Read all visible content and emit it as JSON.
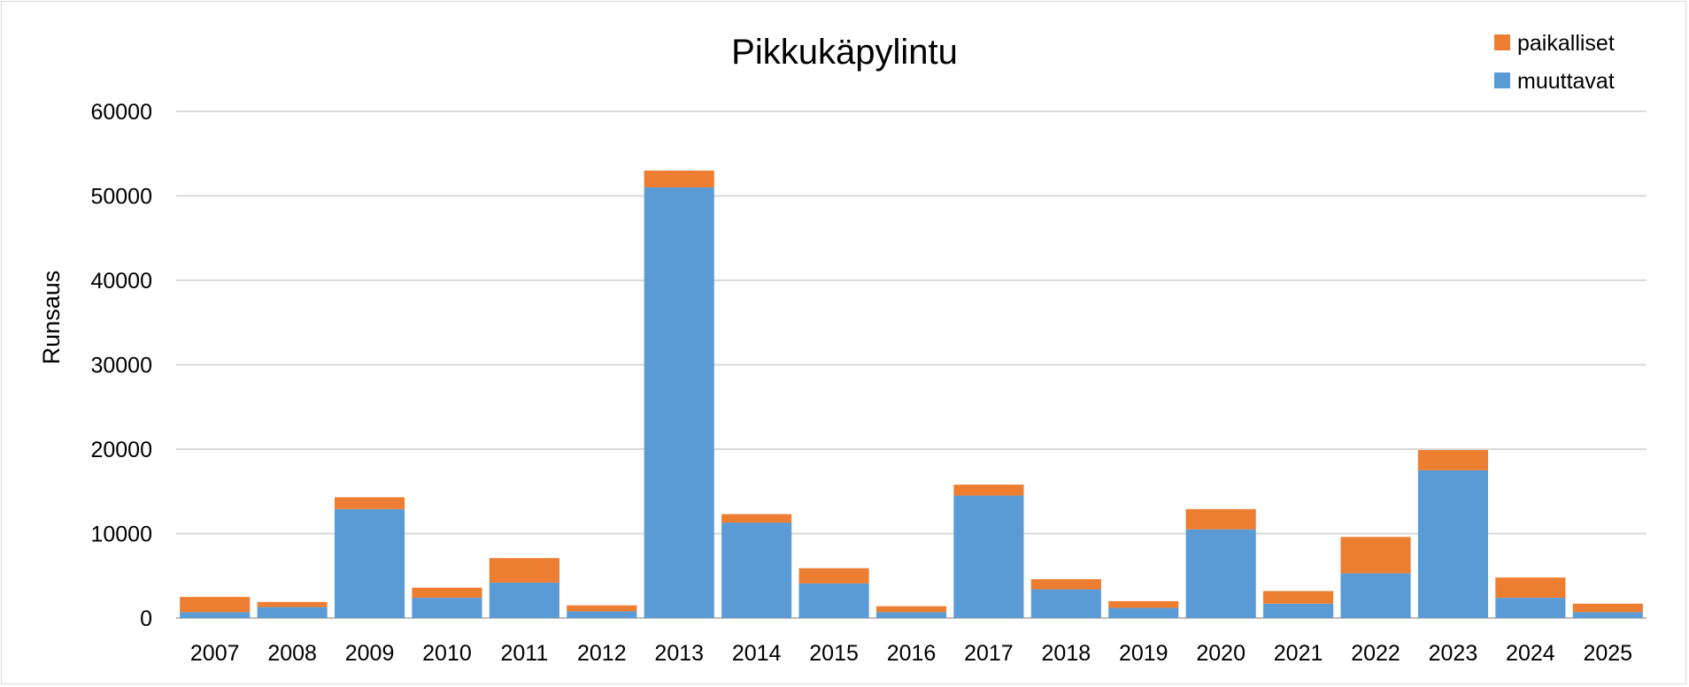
{
  "chart_data": {
    "type": "bar",
    "stacked": true,
    "title": "Pikkukäpylintu",
    "xlabel": "",
    "ylabel": "Runsaus",
    "ylim": [
      0,
      60000
    ],
    "yticks": [
      0,
      10000,
      20000,
      30000,
      40000,
      50000,
      60000
    ],
    "grid": true,
    "legend_position": "top-right",
    "categories": [
      "2007",
      "2008",
      "2009",
      "2010",
      "2011",
      "2012",
      "2013",
      "2014",
      "2015",
      "2016",
      "2017",
      "2018",
      "2019",
      "2020",
      "2021",
      "2022",
      "2023",
      "2024",
      "2025"
    ],
    "series": [
      {
        "name": "muuttavat",
        "color": "#5b9bd5",
        "values": [
          700,
          1300,
          12900,
          2400,
          4200,
          800,
          51000,
          11300,
          4100,
          700,
          14500,
          3400,
          1200,
          10500,
          1700,
          5300,
          17500,
          2400,
          700
        ]
      },
      {
        "name": "paikalliset",
        "color": "#ed7d31",
        "values": [
          1800,
          600,
          1400,
          1200,
          2900,
          700,
          2000,
          1000,
          1800,
          700,
          1300,
          1200,
          800,
          2400,
          1500,
          4300,
          2400,
          2400,
          1000
        ]
      }
    ],
    "legend_order": [
      "paikalliset",
      "muuttavat"
    ]
  }
}
